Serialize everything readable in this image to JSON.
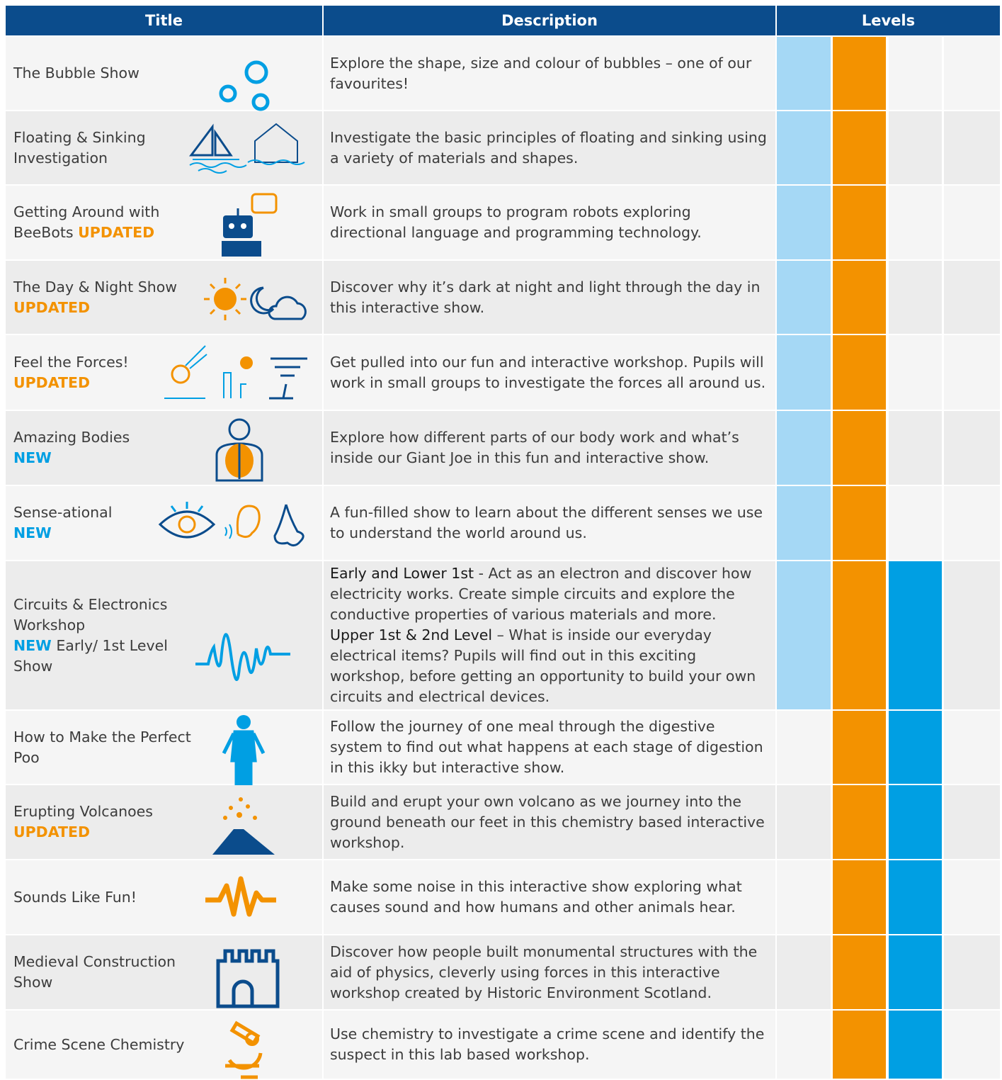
{
  "header": {
    "columns": [
      "Title",
      "Description",
      "Levels"
    ]
  },
  "level_colors": [
    "#a5d8f5",
    "#f39200",
    "#009fe3"
  ],
  "tag_colors": {
    "UPDATED": "#f39200",
    "NEW": "#009fe3"
  },
  "rows": [
    {
      "title": "The Bubble Show",
      "description": [
        {
          "text": "Explore the shape, size and colour of bubbles – one of our favourites!",
          "bold": false
        }
      ],
      "levels": [
        true,
        true,
        false,
        false
      ]
    },
    {
      "title": "Floating & Sinking Investigation",
      "description": [
        {
          "text": "Investigate the basic principles of floating and sinking using a variety of materials and shapes.",
          "bold": false
        }
      ],
      "levels": [
        true,
        true,
        false,
        false
      ]
    },
    {
      "title": "Getting Around with BeeBots",
      "tag": "UPDATED",
      "description": [
        {
          "text": "Work in small groups to program robots exploring directional language and programming technology.",
          "bold": false
        }
      ],
      "levels": [
        true,
        true,
        false,
        false
      ]
    },
    {
      "title": "The Day & Night Show",
      "tag": "UPDATED",
      "description": [
        {
          "text": "Discover why it’s dark at night and light through the day in this interactive show.",
          "bold": false
        }
      ],
      "levels": [
        true,
        true,
        false,
        false
      ]
    },
    {
      "title": "Feel the Forces!",
      "tag": "UPDATED",
      "description": [
        {
          "text": "Get pulled into our fun and interactive workshop. Pupils will work in small groups to investigate the forces all around us.",
          "bold": false
        }
      ],
      "levels": [
        true,
        true,
        false,
        false
      ]
    },
    {
      "title": "Amazing Bodies",
      "tag": "NEW",
      "description": [
        {
          "text": "Explore how different parts of our body work and what’s inside our Giant Joe in this fun and interactive show.",
          "bold": false
        }
      ],
      "levels": [
        true,
        true,
        false,
        false
      ]
    },
    {
      "title": "Sense-ational",
      "tag": "NEW",
      "description": [
        {
          "text": "A fun-filled show to learn about the different senses we use to understand the world around us.",
          "bold": false
        }
      ],
      "levels": [
        true,
        true,
        false,
        false
      ]
    },
    {
      "title": "Circuits & Electronics Workshop",
      "tag": "NEW",
      "after_tag": "Early/ 1st Level Show",
      "description": [
        {
          "text": "Early and Lower 1st",
          "bold": true
        },
        {
          "text": " - Act as an electron and discover how electricity works. Create simple circuits and explore the conductive properties of various materials and more.",
          "bold": false
        },
        {
          "text": "Upper 1st & 2nd Level",
          "bold": true,
          "newline": true
        },
        {
          "text": " – What is inside our everyday electrical items? Pupils will find out in this exciting workshop, before getting an opportunity to build your own circuits and electrical devices.",
          "bold": false
        }
      ],
      "levels": [
        true,
        true,
        true,
        false
      ]
    },
    {
      "title": "How to Make the Perfect Poo",
      "description": [
        {
          "text": "Follow the journey of one meal through the digestive system to find out what happens at each stage of digestion in this ikky but interactive show.",
          "bold": false
        }
      ],
      "levels": [
        false,
        true,
        true,
        false
      ]
    },
    {
      "title": "Erupting Volcanoes",
      "tag": "UPDATED",
      "description": [
        {
          "text": "Build and erupt your own volcano as we journey into the ground beneath our feet in this chemistry based interactive workshop.",
          "bold": false
        }
      ],
      "levels": [
        false,
        true,
        true,
        false
      ]
    },
    {
      "title": "Sounds Like Fun!",
      "description": [
        {
          "text": "Make some noise in this interactive show exploring what causes sound and how humans and other animals hear.",
          "bold": false
        }
      ],
      "levels": [
        false,
        true,
        true,
        false
      ]
    },
    {
      "title": "Medieval Construction Show",
      "description": [
        {
          "text": "Discover how people built monumental structures with the aid of physics, cleverly using forces in this interactive workshop created by Historic Environment Scotland.",
          "bold": false
        }
      ],
      "levels": [
        false,
        true,
        true,
        false
      ]
    },
    {
      "title": "Crime Scene Chemistry",
      "description": [
        {
          "text": "Use chemistry to investigate a crime scene and identify the suspect in this lab based workshop.",
          "bold": false
        }
      ],
      "levels": [
        false,
        true,
        true,
        false
      ]
    }
  ]
}
